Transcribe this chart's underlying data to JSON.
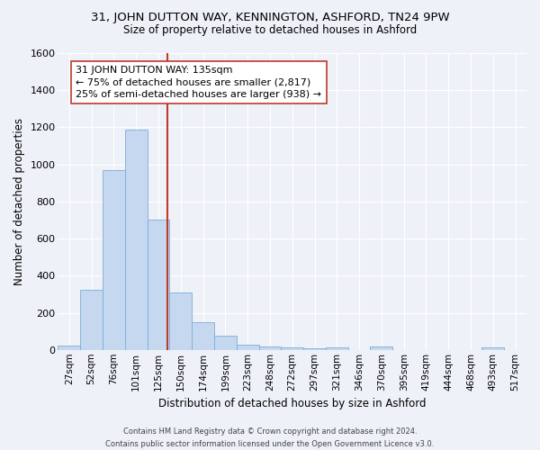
{
  "title": "31, JOHN DUTTON WAY, KENNINGTON, ASHFORD, TN24 9PW",
  "subtitle": "Size of property relative to detached houses in Ashford",
  "xlabel": "Distribution of detached houses by size in Ashford",
  "ylabel": "Number of detached properties",
  "categories": [
    "27sqm",
    "52sqm",
    "76sqm",
    "101sqm",
    "125sqm",
    "150sqm",
    "174sqm",
    "199sqm",
    "223sqm",
    "248sqm",
    "272sqm",
    "297sqm",
    "321sqm",
    "346sqm",
    "370sqm",
    "395sqm",
    "419sqm",
    "444sqm",
    "468sqm",
    "493sqm",
    "517sqm"
  ],
  "values": [
    25,
    325,
    970,
    1190,
    700,
    310,
    150,
    75,
    30,
    18,
    12,
    8,
    12,
    0,
    18,
    0,
    0,
    0,
    0,
    12,
    0
  ],
  "bar_color": "#c5d8f0",
  "bar_edge_color": "#7aaed6",
  "vline_color": "#c0392b",
  "annotation_line1": "31 JOHN DUTTON WAY: 135sqm",
  "annotation_line2": "← 75% of detached houses are smaller (2,817)",
  "annotation_line3": "25% of semi-detached houses are larger (938) →",
  "annotation_box_color": "#ffffff",
  "annotation_box_edge": "#c0392b",
  "background_color": "#eef2f8",
  "grid_color": "#ffffff",
  "footer_line1": "Contains HM Land Registry data © Crown copyright and database right 2024.",
  "footer_line2": "Contains public sector information licensed under the Open Government Licence v3.0.",
  "ylim": [
    0,
    1600
  ],
  "yticks": [
    0,
    200,
    400,
    600,
    800,
    1000,
    1200,
    1400,
    1600
  ],
  "title_fontsize": 9.5,
  "subtitle_fontsize": 8.5,
  "axis_label_fontsize": 8.5,
  "tick_fontsize": 7.5,
  "annotation_fontsize": 8.0,
  "footer_fontsize": 6.0
}
